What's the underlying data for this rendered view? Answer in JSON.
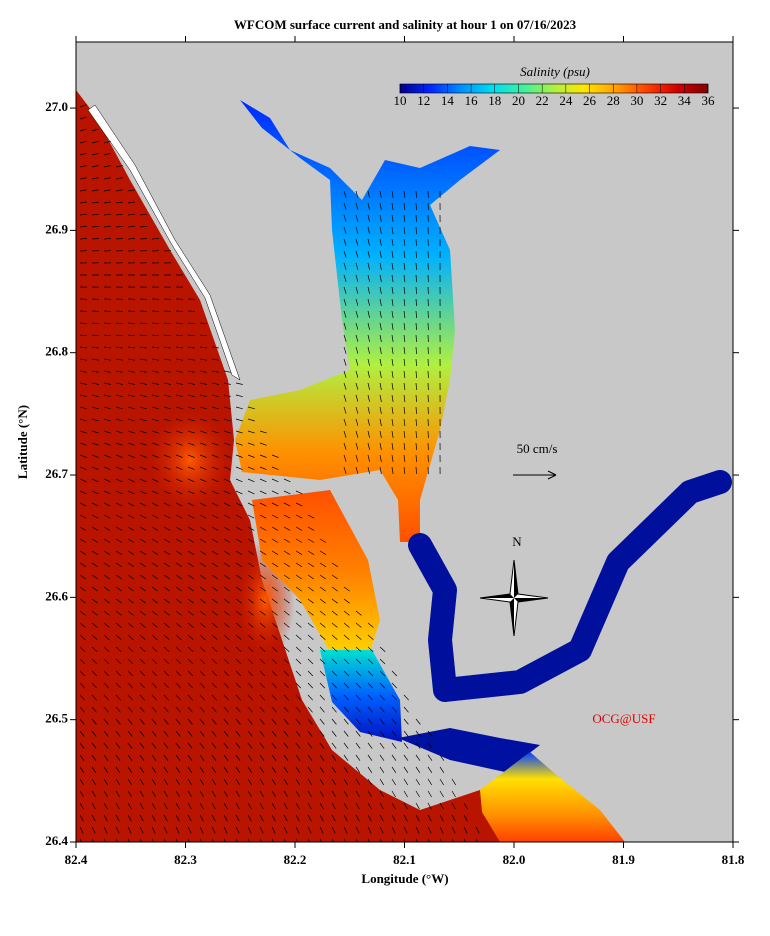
{
  "chart_data": {
    "type": "map",
    "title": "WFCOM surface current and salinity at hour 1 on 07/16/2023",
    "x_label": "Longitude (°W)",
    "y_label": "Latitude (°N)",
    "xlim": [
      82.4,
      81.8
    ],
    "xticks": [
      82.4,
      82.3,
      82.2,
      82.1,
      {
        "value": 82,
        "label": "82.0"
      },
      81.9,
      81.8
    ],
    "ylim": [
      26.4,
      27.054
    ],
    "yticks": [
      26.4,
      26.5,
      26.6,
      26.7,
      26.8,
      26.9,
      {
        "value": 27,
        "label": "27.0"
      }
    ],
    "colorbar": {
      "label": "Salinity (psu)",
      "lim": [
        10,
        36
      ],
      "ticks": [
        10,
        12,
        14,
        16,
        18,
        20,
        22,
        24,
        26,
        28,
        30,
        32,
        34,
        36
      ],
      "colors": [
        "#00008c",
        "#0028ff",
        "#0090ff",
        "#00dcf0",
        "#40f0a0",
        "#b0f040",
        "#ffe600",
        "#ffa000",
        "#ff4000",
        "#d00000",
        "#800000"
      ]
    },
    "scale_label": "50 cm/s",
    "compass_label": "N",
    "credit": "OCG@USF"
  }
}
